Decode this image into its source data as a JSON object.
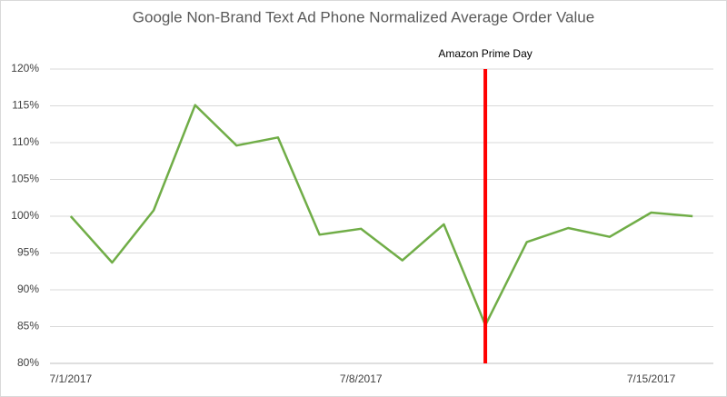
{
  "chart_data": {
    "type": "line",
    "title": "Google Non-Brand Text Ad Phone Normalized Average Order Value",
    "categories": [
      "7/1/2017",
      null,
      null,
      null,
      null,
      null,
      null,
      "7/8/2017",
      null,
      null,
      null,
      null,
      null,
      null,
      "7/15/2017",
      null
    ],
    "series": [
      {
        "name": "Normalized Average Order Value",
        "color": "#70ad47",
        "values": [
          100,
          93.7,
          100.8,
          115.1,
          109.6,
          110.7,
          97.5,
          98.3,
          94,
          98.9,
          85.2,
          96.5,
          98.4,
          97.2,
          100.5,
          100
        ]
      }
    ],
    "ylim": [
      80,
      120
    ],
    "yticks": [
      {
        "value": 80,
        "label": "80%"
      },
      {
        "value": 85,
        "label": "85%"
      },
      {
        "value": 90,
        "label": "90%"
      },
      {
        "value": 95,
        "label": "95%"
      },
      {
        "value": 100,
        "label": "100%"
      },
      {
        "value": 105,
        "label": "105%"
      },
      {
        "value": 110,
        "label": "110%"
      },
      {
        "value": 115,
        "label": "115%"
      },
      {
        "value": 120,
        "label": "120%"
      }
    ],
    "grid": true,
    "annotation": {
      "text": "Amazon Prime Day",
      "category_index": 10,
      "color": "#ff0000"
    }
  }
}
